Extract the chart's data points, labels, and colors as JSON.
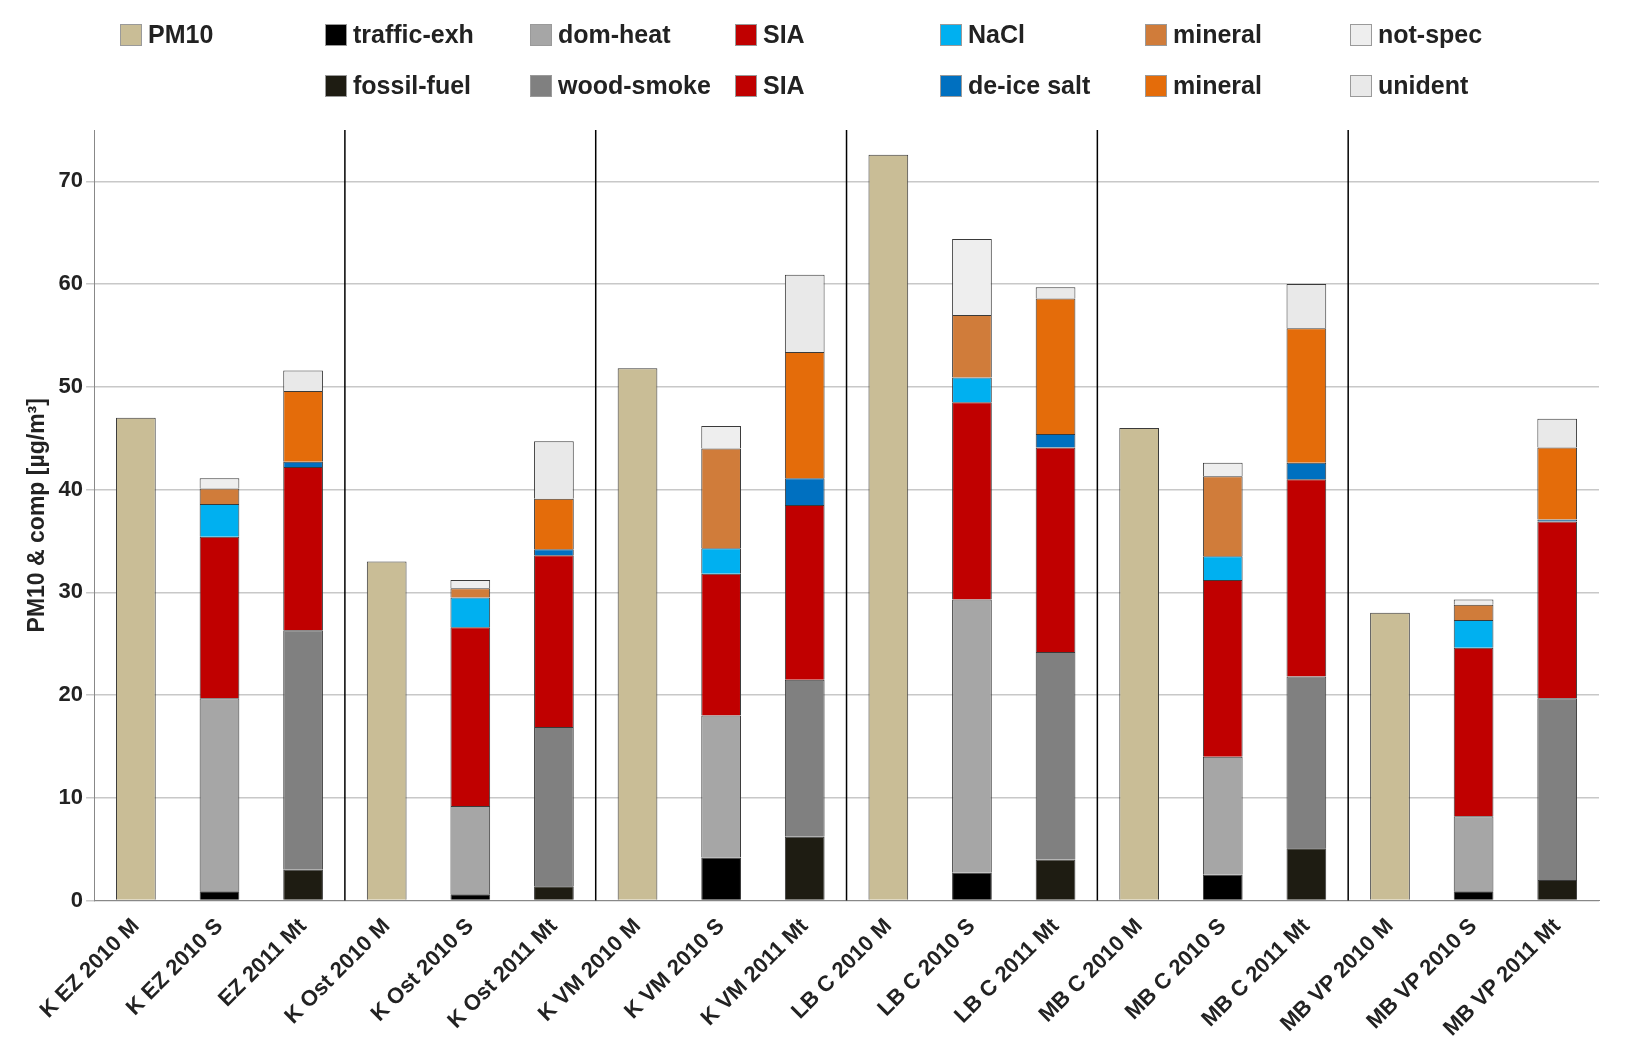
{
  "chart_data": {
    "type": "bar",
    "stacked": true,
    "ylabel": "PM10 & comp [µg/m³]",
    "legend": "top",
    "grid": "y",
    "ylim": [
      0,
      75
    ],
    "yticks": [
      0,
      10,
      20,
      30,
      40,
      50,
      60,
      70
    ],
    "categories": [
      "K EZ 2010 M",
      "K EZ 2010 S",
      "EZ 2011 Mt",
      "K Ost 2010 M",
      "K Ost 2010 S",
      "K Ost 2011 Mt",
      "K VM 2010 M",
      "K VM 2010 S",
      "K VM 2011 Mt",
      "LB C 2010 M",
      "LB C 2010 S",
      "LB C 2011 Mt",
      "MB C 2010 M",
      "MB C 2010 S",
      "MB C 2011 Mt",
      "MB VP 2010 M",
      "MB VP 2010 S",
      "MB VP 2011 Mt"
    ],
    "series": [
      {
        "name": "PM10",
        "color": "#c9bd96",
        "values": [
          47,
          null,
          null,
          33,
          null,
          null,
          51.8,
          null,
          null,
          72.6,
          null,
          null,
          46,
          null,
          null,
          28,
          null,
          null
        ]
      },
      {
        "name": "traffic-exh",
        "color": "#000000",
        "values": [
          null,
          0.9,
          null,
          null,
          0.6,
          null,
          null,
          4.2,
          null,
          null,
          2.7,
          null,
          null,
          2.5,
          null,
          null,
          0.9,
          null
        ]
      },
      {
        "name": "dom-heat",
        "color": "#a6a6a6",
        "values": [
          null,
          18.8,
          null,
          null,
          8.6,
          null,
          null,
          13.8,
          null,
          null,
          26.6,
          null,
          null,
          11.5,
          null,
          null,
          7.3,
          null
        ]
      },
      {
        "name": "SIA",
        "color": "#c00000",
        "values": [
          null,
          15.7,
          null,
          null,
          17.4,
          null,
          null,
          13.8,
          null,
          null,
          19.2,
          null,
          null,
          17.2,
          null,
          null,
          16.4,
          null
        ]
      },
      {
        "name": "NaCl",
        "color": "#00b0f0",
        "values": [
          null,
          3.2,
          null,
          null,
          2.9,
          null,
          null,
          2.5,
          null,
          null,
          2.4,
          null,
          null,
          2.3,
          null,
          null,
          2.7,
          null
        ]
      },
      {
        "name": "mineral",
        "color": "#d07c3a",
        "values": [
          null,
          1.5,
          null,
          null,
          0.9,
          null,
          null,
          9.7,
          null,
          null,
          6.1,
          null,
          null,
          7.8,
          null,
          null,
          1.5,
          null
        ]
      },
      {
        "name": "not-spec",
        "color": "#eeeeee",
        "values": [
          null,
          1.0,
          null,
          null,
          0.8,
          null,
          null,
          2.2,
          null,
          null,
          7.4,
          null,
          null,
          1.3,
          null,
          null,
          0.5,
          null
        ]
      },
      {
        "name": "fossil-fuel",
        "color": "#1e1c12",
        "values": [
          null,
          null,
          3.0,
          null,
          null,
          1.4,
          null,
          null,
          6.2,
          null,
          null,
          4.0,
          null,
          null,
          5.1,
          null,
          null,
          2.0
        ]
      },
      {
        "name": "wood-smoke",
        "color": "#808080",
        "values": [
          null,
          null,
          23.3,
          null,
          null,
          15.5,
          null,
          null,
          15.3,
          null,
          null,
          20.2,
          null,
          null,
          16.7,
          null,
          null,
          17.7
        ]
      },
      {
        "name": "SIA",
        "color": "#c00000",
        "values": [
          null,
          null,
          15.9,
          null,
          null,
          16.7,
          null,
          null,
          17.0,
          null,
          null,
          19.9,
          null,
          null,
          19.2,
          null,
          null,
          17.2
        ]
      },
      {
        "name": "de-ice salt",
        "color": "#0070c0",
        "values": [
          null,
          null,
          0.5,
          null,
          null,
          0.6,
          null,
          null,
          2.6,
          null,
          null,
          1.3,
          null,
          null,
          1.6,
          null,
          null,
          0.2
        ]
      },
      {
        "name": "mineral",
        "color": "#e46c0a",
        "values": [
          null,
          null,
          6.9,
          null,
          null,
          4.9,
          null,
          null,
          12.3,
          null,
          null,
          13.2,
          null,
          null,
          13.1,
          null,
          null,
          7.0
        ]
      },
      {
        "name": "unident",
        "color": "#e9e9e9",
        "values": [
          null,
          null,
          2.0,
          null,
          null,
          5.6,
          null,
          null,
          7.5,
          null,
          null,
          1.1,
          null,
          null,
          4.3,
          null,
          null,
          2.8
        ]
      }
    ]
  }
}
